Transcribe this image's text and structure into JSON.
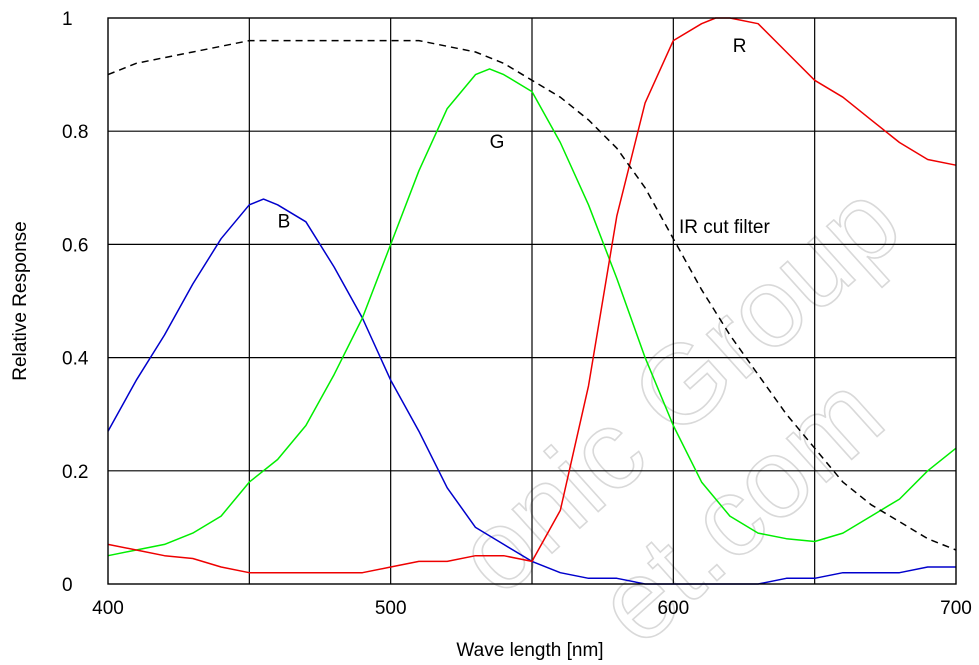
{
  "chart_data": {
    "type": "line",
    "xlabel": "Wave length [nm]",
    "ylabel": "Relative Response",
    "xlim": [
      400,
      700
    ],
    "ylim": [
      0,
      1
    ],
    "xticks": [
      "400",
      "500",
      "600",
      "700"
    ],
    "yticks": [
      "0",
      "0.2",
      "0.4",
      "0.6",
      "0.8",
      "1"
    ],
    "grid": true,
    "watermark": [
      "onic Group",
      "et.com"
    ],
    "series": [
      {
        "name": "B",
        "color": "#0000cc",
        "dash": false,
        "label_at": [
          460,
          0.63
        ],
        "points": [
          [
            400,
            0.27
          ],
          [
            410,
            0.36
          ],
          [
            420,
            0.44
          ],
          [
            430,
            0.53
          ],
          [
            440,
            0.61
          ],
          [
            450,
            0.67
          ],
          [
            455,
            0.68
          ],
          [
            460,
            0.67
          ],
          [
            470,
            0.64
          ],
          [
            480,
            0.56
          ],
          [
            490,
            0.47
          ],
          [
            500,
            0.36
          ],
          [
            510,
            0.27
          ],
          [
            520,
            0.17
          ],
          [
            530,
            0.1
          ],
          [
            540,
            0.07
          ],
          [
            550,
            0.04
          ],
          [
            560,
            0.02
          ],
          [
            570,
            0.01
          ],
          [
            580,
            0.01
          ],
          [
            590,
            0.0
          ],
          [
            600,
            0.0
          ],
          [
            610,
            0.0
          ],
          [
            620,
            0.0
          ],
          [
            630,
            0.0
          ],
          [
            640,
            0.01
          ],
          [
            650,
            0.01
          ],
          [
            660,
            0.02
          ],
          [
            670,
            0.02
          ],
          [
            680,
            0.02
          ],
          [
            690,
            0.03
          ],
          [
            700,
            0.03
          ]
        ]
      },
      {
        "name": "G",
        "color": "#00ee00",
        "dash": false,
        "label_at": [
          535,
          0.77
        ],
        "points": [
          [
            400,
            0.05
          ],
          [
            410,
            0.06
          ],
          [
            420,
            0.07
          ],
          [
            430,
            0.09
          ],
          [
            440,
            0.12
          ],
          [
            450,
            0.18
          ],
          [
            460,
            0.22
          ],
          [
            470,
            0.28
          ],
          [
            480,
            0.37
          ],
          [
            490,
            0.47
          ],
          [
            500,
            0.6
          ],
          [
            510,
            0.73
          ],
          [
            520,
            0.84
          ],
          [
            530,
            0.9
          ],
          [
            535,
            0.91
          ],
          [
            540,
            0.9
          ],
          [
            550,
            0.87
          ],
          [
            560,
            0.78
          ],
          [
            570,
            0.67
          ],
          [
            580,
            0.54
          ],
          [
            590,
            0.4
          ],
          [
            600,
            0.28
          ],
          [
            610,
            0.18
          ],
          [
            620,
            0.12
          ],
          [
            630,
            0.09
          ],
          [
            640,
            0.08
          ],
          [
            650,
            0.075
          ],
          [
            660,
            0.09
          ],
          [
            670,
            0.12
          ],
          [
            680,
            0.15
          ],
          [
            690,
            0.2
          ],
          [
            700,
            0.24
          ]
        ]
      },
      {
        "name": "R",
        "color": "#ee0000",
        "dash": false,
        "label_at": [
          621,
          0.94
        ],
        "points": [
          [
            400,
            0.07
          ],
          [
            410,
            0.06
          ],
          [
            420,
            0.05
          ],
          [
            430,
            0.045
          ],
          [
            440,
            0.03
          ],
          [
            450,
            0.02
          ],
          [
            460,
            0.02
          ],
          [
            470,
            0.02
          ],
          [
            480,
            0.02
          ],
          [
            490,
            0.02
          ],
          [
            500,
            0.03
          ],
          [
            510,
            0.04
          ],
          [
            520,
            0.04
          ],
          [
            530,
            0.05
          ],
          [
            540,
            0.05
          ],
          [
            550,
            0.04
          ],
          [
            560,
            0.13
          ],
          [
            570,
            0.35
          ],
          [
            580,
            0.65
          ],
          [
            590,
            0.85
          ],
          [
            600,
            0.96
          ],
          [
            610,
            0.99
          ],
          [
            615,
            1.0
          ],
          [
            620,
            1.0
          ],
          [
            630,
            0.99
          ],
          [
            640,
            0.94
          ],
          [
            650,
            0.89
          ],
          [
            660,
            0.86
          ],
          [
            670,
            0.82
          ],
          [
            680,
            0.78
          ],
          [
            690,
            0.75
          ],
          [
            700,
            0.74
          ]
        ]
      },
      {
        "name": "IR cut filter",
        "color": "#000000",
        "dash": true,
        "label_at": [
          602,
          0.62
        ],
        "points": [
          [
            400,
            0.9
          ],
          [
            410,
            0.92
          ],
          [
            420,
            0.93
          ],
          [
            430,
            0.94
          ],
          [
            440,
            0.95
          ],
          [
            450,
            0.96
          ],
          [
            460,
            0.96
          ],
          [
            470,
            0.96
          ],
          [
            480,
            0.96
          ],
          [
            490,
            0.96
          ],
          [
            500,
            0.96
          ],
          [
            510,
            0.96
          ],
          [
            520,
            0.95
          ],
          [
            530,
            0.94
          ],
          [
            540,
            0.92
          ],
          [
            550,
            0.89
          ],
          [
            560,
            0.86
          ],
          [
            570,
            0.82
          ],
          [
            580,
            0.77
          ],
          [
            590,
            0.7
          ],
          [
            600,
            0.61
          ],
          [
            610,
            0.52
          ],
          [
            620,
            0.44
          ],
          [
            630,
            0.37
          ],
          [
            640,
            0.3
          ],
          [
            650,
            0.24
          ],
          [
            660,
            0.18
          ],
          [
            670,
            0.14
          ],
          [
            680,
            0.11
          ],
          [
            690,
            0.08
          ],
          [
            700,
            0.06
          ]
        ]
      }
    ]
  }
}
